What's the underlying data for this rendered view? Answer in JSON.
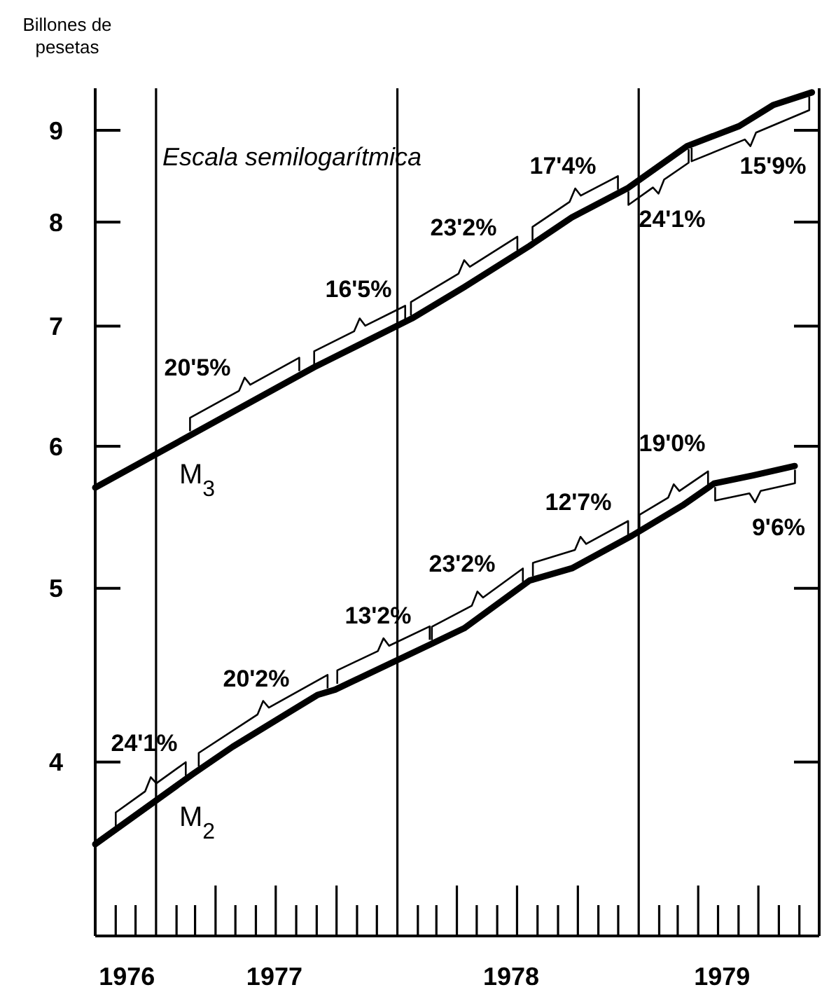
{
  "chart_data": {
    "type": "line",
    "ylabel": "Billones de pesetas",
    "log": true,
    "ylim": [
      3.2,
      9.5
    ],
    "yticks": [
      4,
      5,
      6,
      7,
      8,
      9
    ],
    "xlim": [
      "1976-10-01",
      "1979-10-01"
    ],
    "xticks": [
      {
        "value": "1976-11-18",
        "label": "1976"
      },
      {
        "value": "1977-06-29",
        "label": "1977"
      },
      {
        "value": "1978-06-22",
        "label": "1978"
      },
      {
        "value": "1979-05-07",
        "label": "1979"
      }
    ],
    "series": [
      {
        "name": "M$_{3}$",
        "color": "#000000",
        "x": [
          "1976-10-01",
          "1977-08-28",
          "1978-01-23",
          "1978-04-12",
          "1978-07-20",
          "1978-09-22",
          "1978-12-16",
          "1979-03-15",
          "1979-06-02",
          "1979-07-24",
          "1979-09-20"
        ],
        "values": [
          5.69,
          6.64,
          7.07,
          7.36,
          7.76,
          8.05,
          8.36,
          8.82,
          9.05,
          9.3,
          9.45
        ]
      },
      {
        "name": "M$_{2}$",
        "color": "#000000",
        "x": [
          "1976-10-01",
          "1977-02-26",
          "1977-04-27",
          "1977-09-02",
          "1977-09-29",
          "1978-02-24",
          "1978-04-12",
          "1978-07-20",
          "1978-09-22",
          "1978-12-22",
          "1979-03-08",
          "1979-04-25",
          "1979-06-23",
          "1979-08-25"
        ],
        "values": [
          3.6,
          3.94,
          4.08,
          4.36,
          4.39,
          4.66,
          4.75,
          5.05,
          5.13,
          5.35,
          5.56,
          5.72,
          5.78,
          5.85
        ]
      }
    ],
    "ref_lines": [
      {
        "axis": "x",
        "value": "1977-01-01",
        "color": "#000000"
      },
      {
        "axis": "x",
        "value": "1978-01-01",
        "color": "#000000"
      },
      {
        "axis": "x",
        "value": "1979-01-01",
        "color": "#000000"
      }
    ],
    "annotations": [
      "Escala semilogarítmica",
      {
        "text": "20'5%",
        "x": "1977-05-15",
        "y": 6.33
      },
      {
        "text": "16'5%",
        "x": "1977-11-05",
        "y": 6.83
      },
      {
        "text": "23'2%",
        "x": "1978-04-12",
        "y": 7.36
      },
      {
        "text": "17'4%",
        "x": "1978-09-27",
        "y": 8.07
      },
      {
        "text": "24'1%",
        "x": "1979-01-31",
        "y": 8.59
      },
      {
        "text": "15'9%",
        "x": "1979-06-19",
        "y": 9.13
      },
      {
        "text": "24'1%",
        "x": "1976-12-24",
        "y": 3.79
      },
      {
        "text": "20'2%",
        "x": "1977-06-12",
        "y": 4.18
      },
      {
        "text": "13'2%",
        "x": "1977-12-11",
        "y": 4.53
      },
      {
        "text": "23'2%",
        "x": "1978-05-02",
        "y": 4.81
      },
      {
        "text": "12'7%",
        "x": "1978-10-05",
        "y": 5.16
      },
      {
        "text": "19'0%",
        "x": "1979-02-23",
        "y": 5.52
      },
      {
        "text": "9'6%",
        "x": "1979-06-26",
        "y": 5.78
      }
    ],
    "grid": false
  }
}
